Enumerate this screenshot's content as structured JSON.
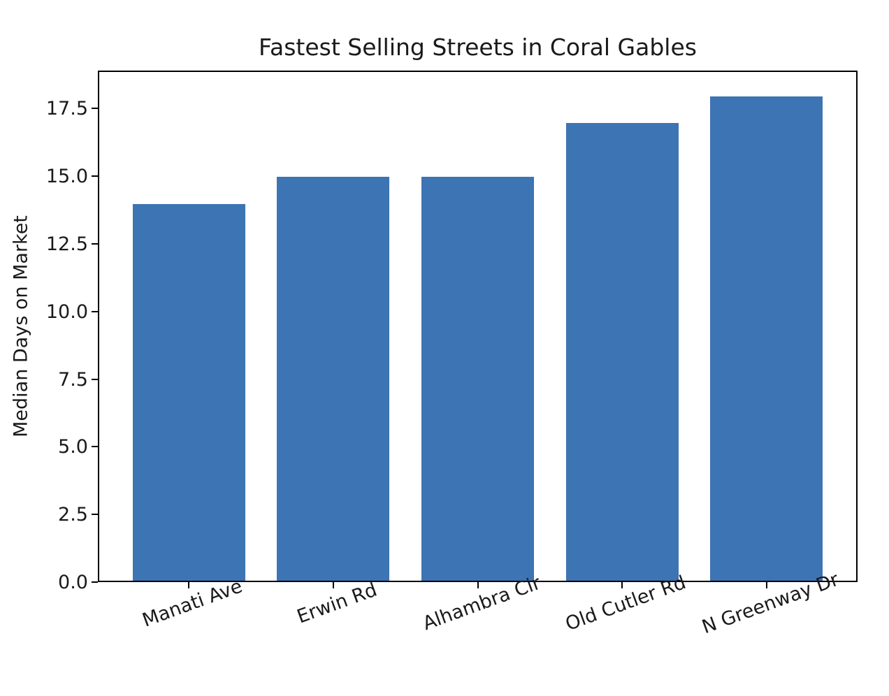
{
  "chart_data": {
    "type": "bar",
    "title": "Fastest Selling Streets in Coral Gables",
    "xlabel": "",
    "ylabel": "Median Days on Market",
    "categories": [
      "Manati Ave",
      "Erwin Rd",
      "Alhambra Cir",
      "Old Cutler Rd",
      "N Greenway Dr"
    ],
    "values": [
      14,
      15,
      15,
      17,
      18
    ],
    "ytick_labels": [
      "0.0",
      "2.5",
      "5.0",
      "7.5",
      "10.0",
      "12.5",
      "15.0",
      "17.5"
    ],
    "ytick_values": [
      0,
      2.5,
      5,
      7.5,
      10,
      12.5,
      15,
      17.5
    ],
    "ylim": [
      0,
      18.9
    ],
    "bar_color": "#3d74b3",
    "x_tick_rotation_deg": 20,
    "grid": false,
    "legend_position": "none"
  }
}
